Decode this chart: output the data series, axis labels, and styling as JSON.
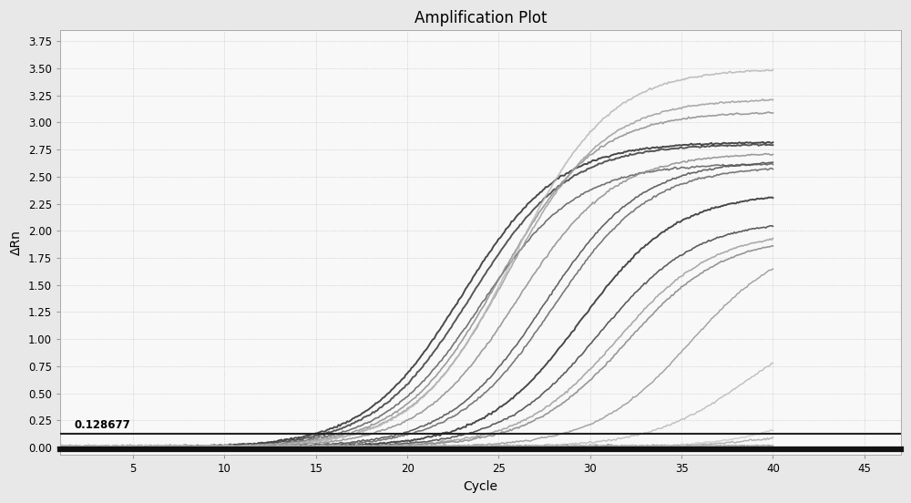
{
  "title": "Amplification Plot",
  "xlabel": "Cycle",
  "ylabel": "ΔRn",
  "xlim": [
    1,
    47
  ],
  "ylim": [
    -0.07,
    3.85
  ],
  "xticks": [
    5,
    10,
    15,
    20,
    25,
    30,
    35,
    40,
    45
  ],
  "yticks": [
    0.0,
    0.25,
    0.5,
    0.75,
    1.0,
    1.25,
    1.5,
    1.75,
    2.0,
    2.25,
    2.5,
    2.75,
    3.0,
    3.25,
    3.5,
    3.75
  ],
  "threshold": 0.128677,
  "threshold_label": "0.128677",
  "background_color": "#e8e8e8",
  "plot_bg_color": "#f8f8f8",
  "threshold_color": "#222222",
  "curves": [
    {
      "midpoint": 23.0,
      "plateau": 2.82,
      "steepness": 0.38,
      "color": "#303030",
      "lw": 1.4
    },
    {
      "midpoint": 23.5,
      "plateau": 2.8,
      "steepness": 0.38,
      "color": "#404040",
      "lw": 1.4
    },
    {
      "midpoint": 24.0,
      "plateau": 2.62,
      "steepness": 0.38,
      "color": "#606060",
      "lw": 1.2
    },
    {
      "midpoint": 25.0,
      "plateau": 3.1,
      "steepness": 0.38,
      "color": "#909090",
      "lw": 1.2
    },
    {
      "midpoint": 25.5,
      "plateau": 3.22,
      "steepness": 0.38,
      "color": "#a0a0a0",
      "lw": 1.2
    },
    {
      "midpoint": 25.8,
      "plateau": 3.5,
      "steepness": 0.38,
      "color": "#b8b8b8",
      "lw": 1.2
    },
    {
      "midpoint": 26.0,
      "plateau": 2.72,
      "steepness": 0.38,
      "color": "#909090",
      "lw": 1.2
    },
    {
      "midpoint": 27.5,
      "plateau": 2.65,
      "steepness": 0.38,
      "color": "#505050",
      "lw": 1.2
    },
    {
      "midpoint": 28.0,
      "plateau": 2.6,
      "steepness": 0.38,
      "color": "#686868",
      "lw": 1.2
    },
    {
      "midpoint": 29.5,
      "plateau": 2.35,
      "steepness": 0.38,
      "color": "#303030",
      "lw": 1.4
    },
    {
      "midpoint": 30.5,
      "plateau": 2.1,
      "steepness": 0.38,
      "color": "#484848",
      "lw": 1.2
    },
    {
      "midpoint": 31.5,
      "plateau": 2.0,
      "steepness": 0.38,
      "color": "#a0a0a0",
      "lw": 1.2
    },
    {
      "midpoint": 32.0,
      "plateau": 1.95,
      "steepness": 0.38,
      "color": "#888888",
      "lw": 1.2
    },
    {
      "midpoint": 35.5,
      "plateau": 1.95,
      "steepness": 0.38,
      "color": "#999999",
      "lw": 1.1
    },
    {
      "midpoint": 38.5,
      "plateau": 1.22,
      "steepness": 0.38,
      "color": "#bbbbbb",
      "lw": 1.1
    },
    {
      "midpoint": 42.0,
      "plateau": 0.28,
      "steepness": 0.38,
      "color": "#aaaaaa",
      "lw": 1.1
    },
    {
      "midpoint": 44.5,
      "plateau": 1.05,
      "steepness": 0.38,
      "color": "#cccccc",
      "lw": 1.1
    }
  ],
  "flat_curves": [
    {
      "color": "#808080",
      "lw": 1.0
    },
    {
      "color": "#909090",
      "lw": 1.0
    },
    {
      "color": "#a0a0a0",
      "lw": 1.0
    },
    {
      "color": "#b0b0b0",
      "lw": 1.0
    },
    {
      "color": "#c0c0c0",
      "lw": 1.0
    }
  ]
}
